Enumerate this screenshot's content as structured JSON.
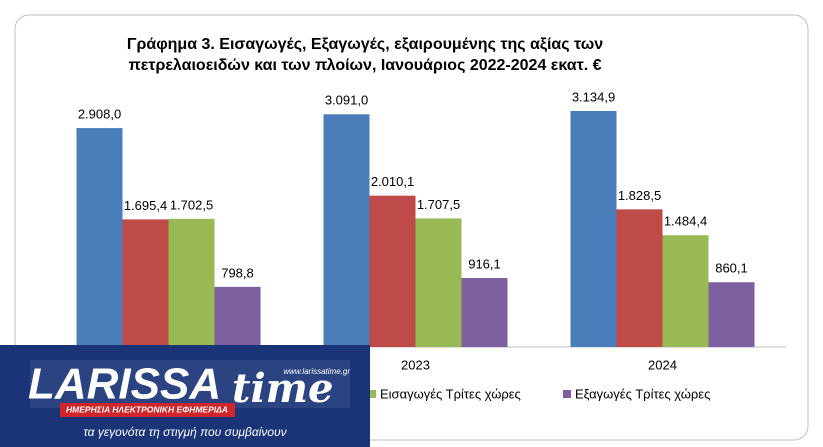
{
  "chart_data": {
    "type": "bar",
    "title": "Γράφημα 3. Εισαγωγές, Εξαγωγές, εξαιρουμένης της αξίας των",
    "subtitle": "πετρελαιοειδών και των πλοίων, Ιανουάριος 2022-2024 εκατ. €",
    "categories": [
      null,
      "2023",
      "2024"
    ],
    "series": [
      {
        "color": "#4a7ebb",
        "values": [
          2908.0,
          3091.0,
          3134.9
        ],
        "value_labels": [
          "2.908,0",
          "3.091,0",
          "3.134,9"
        ]
      },
      {
        "color": "#be4b48",
        "values": [
          1695.4,
          2010.1,
          1828.5
        ],
        "value_labels": [
          "1.695,4",
          "2.010,1",
          "1.828,5"
        ]
      },
      {
        "name": "Εισαγωγές Τρίτες χώρες",
        "color": "#98b954",
        "values": [
          1702.5,
          1707.5,
          1484.4
        ],
        "value_labels": [
          "1.702,5",
          "1.707,5",
          "1.484,4"
        ]
      },
      {
        "name": "Εξαγωγές Τρίτες χώρες",
        "color": "#7d60a0",
        "values": [
          798.8,
          916.1,
          860.1
        ],
        "value_labels": [
          "798,8",
          "916,1",
          "860,1"
        ]
      }
    ]
  },
  "watermark": {
    "brand": "LARISSA",
    "brand2": "time",
    "url": "www.larissatime.gr",
    "tagline": "ΗΜΕΡΗΣΙΑ ΗΛΕΚΤΡΟΝΙΚΗ ΕΦΗΜΕΡΙΔΑ",
    "slogan": "τα γεγονότα τη στιγμή που συμβαίνουν"
  }
}
